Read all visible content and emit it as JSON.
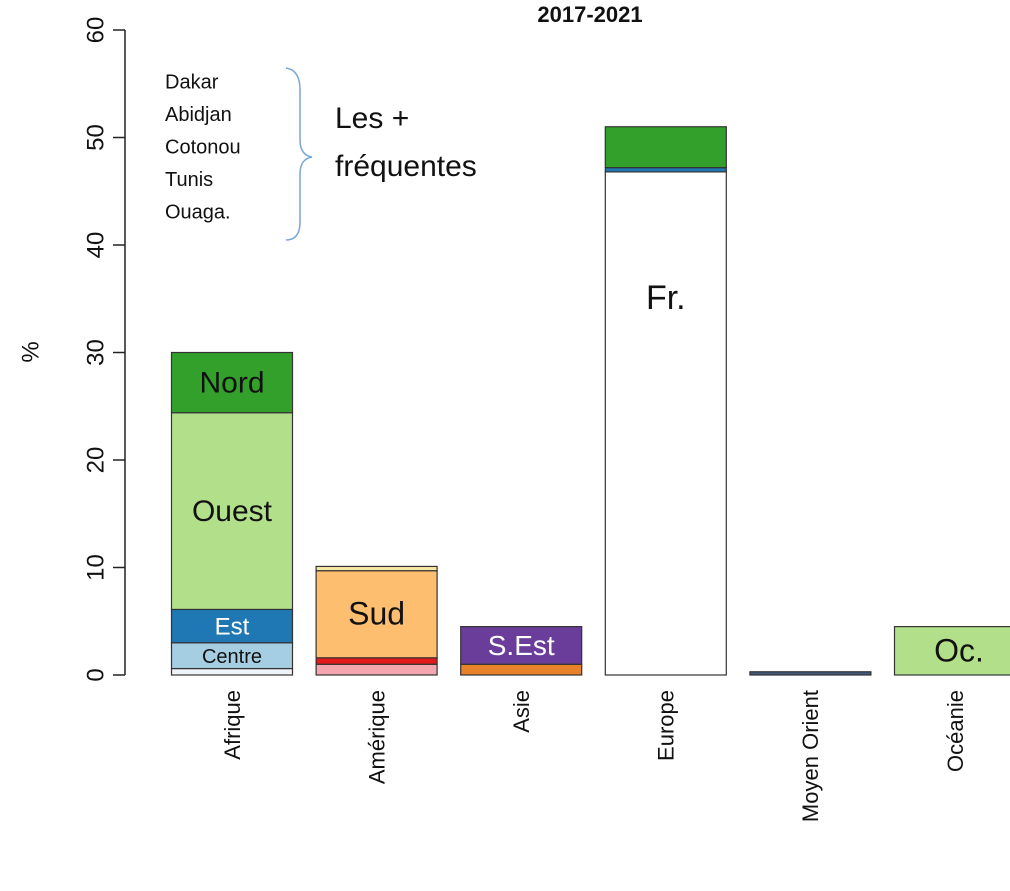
{
  "chart_data": {
    "type": "bar",
    "title": "2017-2021",
    "y_label": "%",
    "ylim": [
      0,
      60
    ],
    "yticks": [
      0,
      10,
      20,
      30,
      40,
      50,
      60
    ],
    "categories": [
      "Afrique",
      "Amérique",
      "Asie",
      "Europe",
      "Moyen Orient",
      "Océanie"
    ],
    "stacks": [
      [
        {
          "value": 0.6,
          "color": "#eef3f8"
        },
        {
          "value": 2.4,
          "color": "#a6cee3",
          "label": "Centre"
        },
        {
          "value": 3.1,
          "color": "#1f78b4",
          "label": "Est"
        },
        {
          "value": 18.3,
          "color": "#b2df8a",
          "label": "Ouest"
        },
        {
          "value": 5.6,
          "color": "#33a02c",
          "label": "Nord"
        }
      ],
      [
        {
          "value": 1.0,
          "color": "#f4a6b0"
        },
        {
          "value": 0.6,
          "color": "#e31a1c"
        },
        {
          "value": 8.1,
          "color": "#fdbf6f",
          "label": "Sud"
        },
        {
          "value": 0.4,
          "color": "#f5e6a0"
        }
      ],
      [
        {
          "value": 1.0,
          "color": "#e8822a"
        },
        {
          "value": 3.5,
          "color": "#6a3d9a",
          "label": "S.Est"
        }
      ],
      [
        {
          "value": 46.8,
          "color": "#ffffff",
          "label": "Fr."
        },
        {
          "value": 0.4,
          "color": "#1f78b4"
        },
        {
          "value": 3.8,
          "color": "#33a02c"
        }
      ],
      [
        {
          "value": 0.3,
          "color": "#3f5a7a"
        }
      ],
      [
        {
          "value": 4.5,
          "color": "#b2df8a",
          "label": "Oc."
        }
      ]
    ],
    "annotations": {
      "cities": [
        "Dakar",
        "Abidjan",
        "Cotonou",
        "Tunis",
        "Ouaga."
      ],
      "note": [
        "Les +",
        "fréquentes"
      ]
    }
  }
}
